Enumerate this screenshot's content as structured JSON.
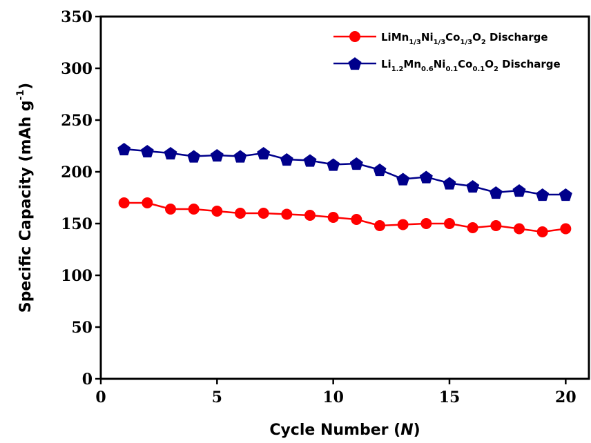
{
  "chart_data": {
    "type": "line",
    "xlabel": "Cycle Number (N)",
    "xlabel_parts": {
      "before": "Cycle Number (",
      "italic": "N",
      "after": ")"
    },
    "ylabel": "Specific Capacity (mAh g-1)",
    "ylabel_parts": {
      "main": "Specific Capacity (mAh g",
      "sup": "-1",
      "close": ")"
    },
    "xlim": [
      0,
      21
    ],
    "ylim": [
      0,
      350
    ],
    "xticks": [
      0,
      5,
      10,
      15,
      20
    ],
    "yticks": [
      0,
      50,
      100,
      150,
      200,
      250,
      300,
      350
    ],
    "grid": false,
    "legend_position": "top-right",
    "x": [
      1,
      2,
      3,
      4,
      5,
      6,
      7,
      8,
      9,
      10,
      11,
      12,
      13,
      14,
      15,
      16,
      17,
      18,
      19,
      20
    ],
    "series": [
      {
        "name": "LiMn1/3Ni1/3Co1/3O2 Discharge",
        "name_parts": [
          [
            "LiMn",
            ""
          ],
          [
            "1/3",
            "sub"
          ],
          [
            "Ni",
            ""
          ],
          [
            "1/3",
            "sub"
          ],
          [
            "Co",
            ""
          ],
          [
            "1/3",
            "sub"
          ],
          [
            "O",
            ""
          ],
          [
            "2",
            "sub"
          ],
          [
            " Discharge",
            ""
          ]
        ],
        "color": "#ff0000",
        "marker": "circle",
        "values": [
          170,
          170,
          164,
          164,
          162,
          160,
          160,
          159,
          158,
          156,
          154,
          148,
          149,
          150,
          150,
          146,
          148,
          145,
          142,
          145
        ]
      },
      {
        "name": "Li1.2Mn0.6Ni0.1Co0.1O2 Discharge",
        "name_parts": [
          [
            "Li",
            ""
          ],
          [
            "1.2",
            "sub"
          ],
          [
            "Mn",
            ""
          ],
          [
            "0.6",
            "sub"
          ],
          [
            "Ni",
            ""
          ],
          [
            "0.1",
            "sub"
          ],
          [
            "Co",
            ""
          ],
          [
            "0.1",
            "sub"
          ],
          [
            "O",
            ""
          ],
          [
            "2",
            "sub"
          ],
          [
            " Discharge",
            ""
          ]
        ],
        "color": "#00008b",
        "marker": "pentagon",
        "values": [
          222,
          220,
          218,
          215,
          216,
          215,
          218,
          212,
          211,
          207,
          208,
          202,
          193,
          195,
          189,
          186,
          180,
          182,
          178,
          178
        ]
      }
    ]
  }
}
